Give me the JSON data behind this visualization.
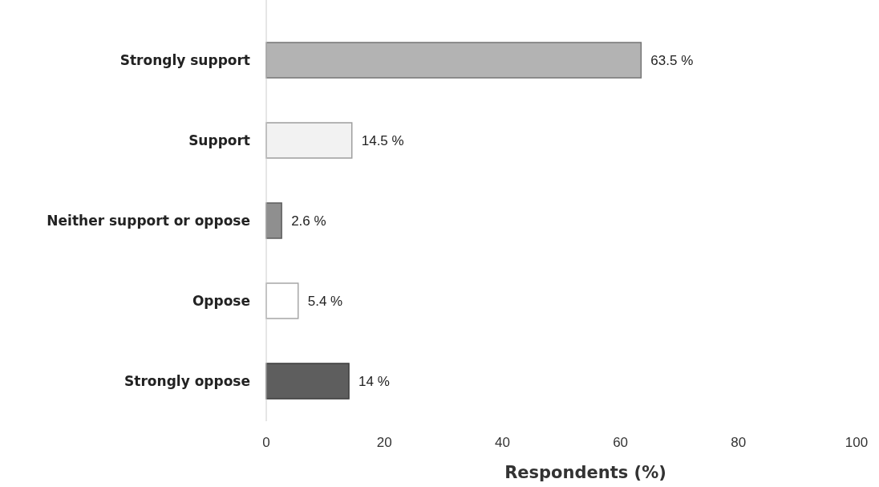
{
  "chart_data": {
    "type": "bar",
    "orientation": "horizontal",
    "xlabel": "Respondents (%)",
    "categories": [
      "Strongly support",
      "Support",
      "Neither support or oppose",
      "Oppose",
      "Strongly oppose"
    ],
    "values": [
      63.5,
      14.5,
      2.6,
      5.4,
      14
    ],
    "colors": [
      "#b3b3b3",
      "#f2f2f2",
      "#8f8f8f",
      "#ffffff",
      "#5e5e5e"
    ],
    "value_labels": [
      "63.5 %",
      "14.5 %",
      "2.6 %",
      "5.4 %",
      "14 %"
    ],
    "xlim": [
      0,
      100
    ],
    "xticks": [
      0,
      20,
      40,
      60,
      80,
      100
    ]
  }
}
